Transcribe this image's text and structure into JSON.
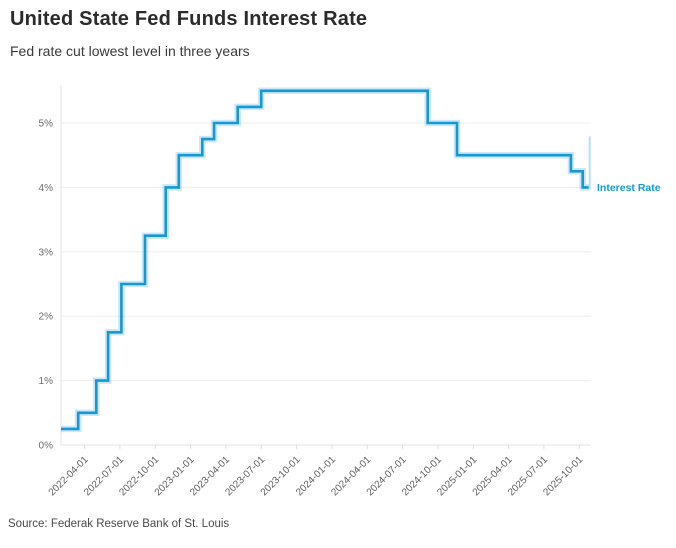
{
  "header": {
    "title": "United State Fed Funds Interest Rate",
    "subtitle": "Fed rate cut lowest level in three years"
  },
  "footer": {
    "source": "Source: Federak Reserve Bank of St. Louis"
  },
  "colors": {
    "line": "#1598d6",
    "line_halo": "#1598d6",
    "end_marker": "#b5e0f4",
    "grid": "#ededed",
    "axis": "#e3e3e3",
    "tick_mark": "#dcdcdc",
    "title_text": "#2b2b2b",
    "tick_text": "#5f5f5f",
    "series_label_text": "#1598d6"
  },
  "chart_data": {
    "type": "line",
    "step": "hv",
    "title": "United State Fed Funds Interest Rate",
    "subtitle": "Fed rate cut lowest level in three years",
    "xlabel": "",
    "ylabel": "",
    "grid": "horizontal",
    "x_domain": [
      "2022-02-01",
      "2025-11-01"
    ],
    "ylim": [
      0,
      5.59
    ],
    "y_tick_values": [
      0,
      1,
      2,
      3,
      4,
      5
    ],
    "y_ticks": [
      "0%",
      "1%",
      "2%",
      "3%",
      "4%",
      "5%"
    ],
    "x_tick_labels": [
      "2022-04-01",
      "2022-07-01",
      "2022-10-01",
      "2023-01-01",
      "2023-04-01",
      "2023-07-01",
      "2023-10-01",
      "2024-01-01",
      "2024-04-01",
      "2024-07-01",
      "2024-10-01",
      "2025-01-01",
      "2025-04-01",
      "2025-07-01",
      "2025-10-01"
    ],
    "series_label": "Interest Rate",
    "legend_position": "right-of-last-point",
    "series": [
      {
        "name": "Interest Rate",
        "unit": "%",
        "points": [
          [
            "2022-02-01",
            0.25
          ],
          [
            "2022-03-15",
            0.5
          ],
          [
            "2022-05-01",
            1.0
          ],
          [
            "2022-06-01",
            1.75
          ],
          [
            "2022-07-05",
            2.5
          ],
          [
            "2022-09-05",
            3.25
          ],
          [
            "2022-10-28",
            4.0
          ],
          [
            "2022-12-01",
            4.5
          ],
          [
            "2023-02-01",
            4.75
          ],
          [
            "2023-03-01",
            5.0
          ],
          [
            "2023-05-01",
            5.25
          ],
          [
            "2023-07-01",
            5.5
          ],
          [
            "2024-09-05",
            5.0
          ],
          [
            "2024-11-20",
            4.5
          ],
          [
            "2025-09-10",
            4.25
          ],
          [
            "2025-10-10",
            4.0
          ],
          [
            "2025-10-28",
            4.0
          ]
        ]
      }
    ]
  }
}
